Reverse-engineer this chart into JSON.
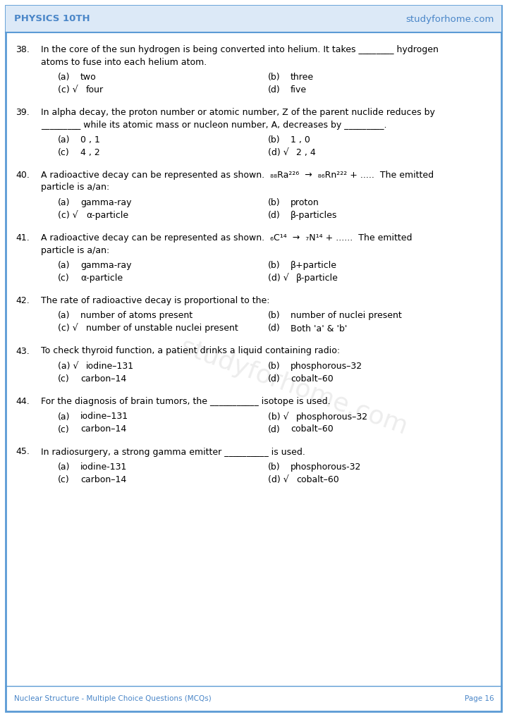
{
  "header_left": "PHYSICS 10TH",
  "header_right": "studyforhome.com",
  "footer_left": "Nuclear Structure - Multiple Choice Questions (MCQs)",
  "footer_right": "Page 16",
  "header_color": "#4a86c8",
  "border_color": "#5b9bd5",
  "bg_color": "#ffffff",
  "text_color": "#000000",
  "check_mark": "√",
  "watermark": "studyforhome.com",
  "questions": [
    {
      "num": "38.",
      "lines": [
        "In the core of the sun hydrogen is being converted into helium. It takes ________ hydrogen",
        "atoms to fuse into each helium atom."
      ],
      "opts": [
        {
          "col": 0,
          "label": "(a)",
          "text": "two",
          "check": false
        },
        {
          "col": 1,
          "label": "(b)",
          "text": "three",
          "check": false
        },
        {
          "col": 0,
          "label": "(c)",
          "text": "four",
          "check": true
        },
        {
          "col": 1,
          "label": "(d)",
          "text": "five",
          "check": false
        }
      ]
    },
    {
      "num": "39.",
      "lines": [
        "In alpha decay, the proton number or atomic number, Z of the parent nuclide reduces by",
        "_________ while its atomic mass or nucleon number, A, decreases by _________."
      ],
      "opts": [
        {
          "col": 0,
          "label": "(a)",
          "text": "0 , 1",
          "check": false
        },
        {
          "col": 1,
          "label": "(b)",
          "text": "1 , 0",
          "check": false
        },
        {
          "col": 0,
          "label": "(c)",
          "text": "4 , 2",
          "check": false
        },
        {
          "col": 1,
          "label": "(d)",
          "text": "2 , 4",
          "check": true
        }
      ]
    },
    {
      "num": "40.",
      "lines": [
        "A radioactive decay can be represented as shown.  ₈₈Ra²²⁶  →  ₈₆Rn²²² + .....  The emitted",
        "particle is a/an:"
      ],
      "opts": [
        {
          "col": 0,
          "label": "(a)",
          "text": "gamma-ray",
          "check": false
        },
        {
          "col": 1,
          "label": "(b)",
          "text": "proton",
          "check": false
        },
        {
          "col": 0,
          "label": "(c)",
          "text": "α-particle",
          "check": true
        },
        {
          "col": 1,
          "label": "(d)",
          "text": "β-particles",
          "check": false
        }
      ]
    },
    {
      "num": "41.",
      "lines": [
        "A radioactive decay can be represented as shown.  ₆C¹⁴  →  ₇N¹⁴ + ......  The emitted",
        "particle is a/an:"
      ],
      "opts": [
        {
          "col": 0,
          "label": "(a)",
          "text": "gamma-ray",
          "check": false
        },
        {
          "col": 1,
          "label": "(b)",
          "text": "β+particle",
          "check": false
        },
        {
          "col": 0,
          "label": "(c)",
          "text": "α-particle",
          "check": false
        },
        {
          "col": 1,
          "label": "(d)",
          "text": "β-particle",
          "check": true
        }
      ]
    },
    {
      "num": "42.",
      "lines": [
        "The rate of radioactive decay is proportional to the:"
      ],
      "opts": [
        {
          "col": 0,
          "label": "(a)",
          "text": "number of atoms present",
          "check": false
        },
        {
          "col": 1,
          "label": "(b)",
          "text": "number of nuclei present",
          "check": false
        },
        {
          "col": 0,
          "label": "(c)",
          "text": "number of unstable nuclei present",
          "check": true
        },
        {
          "col": 1,
          "label": "(d)",
          "text": "Both 'a' & 'b'",
          "check": false
        }
      ]
    },
    {
      "num": "43.",
      "lines": [
        "To check thyroid function, a patient drinks a liquid containing radio:"
      ],
      "opts": [
        {
          "col": 0,
          "label": "(a)",
          "text": "iodine–131",
          "check": true
        },
        {
          "col": 1,
          "label": "(b)",
          "text": "phosphorous–32",
          "check": false
        },
        {
          "col": 0,
          "label": "(c)",
          "text": "carbon–14",
          "check": false
        },
        {
          "col": 1,
          "label": "(d)",
          "text": "cobalt–60",
          "check": false
        }
      ]
    },
    {
      "num": "44.",
      "lines": [
        "For the diagnosis of brain tumors, the ___________ isotope is used."
      ],
      "opts": [
        {
          "col": 0,
          "label": "(a)",
          "text": "iodine–131",
          "check": false
        },
        {
          "col": 1,
          "label": "(b)",
          "text": "phosphorous–32",
          "check": true
        },
        {
          "col": 0,
          "label": "(c)",
          "text": "carbon–14",
          "check": false
        },
        {
          "col": 1,
          "label": "(d)",
          "text": "cobalt–60",
          "check": false
        }
      ]
    },
    {
      "num": "45.",
      "lines": [
        "In radiosurgery, a strong gamma emitter __________ is used."
      ],
      "opts": [
        {
          "col": 0,
          "label": "(a)",
          "text": "iodine-131",
          "check": false
        },
        {
          "col": 1,
          "label": "(b)",
          "text": "phosphorous-32",
          "check": false
        },
        {
          "col": 0,
          "label": "(c)",
          "text": "carbon–14",
          "check": false
        },
        {
          "col": 1,
          "label": "(d)",
          "text": "cobalt–60",
          "check": true
        }
      ]
    }
  ]
}
